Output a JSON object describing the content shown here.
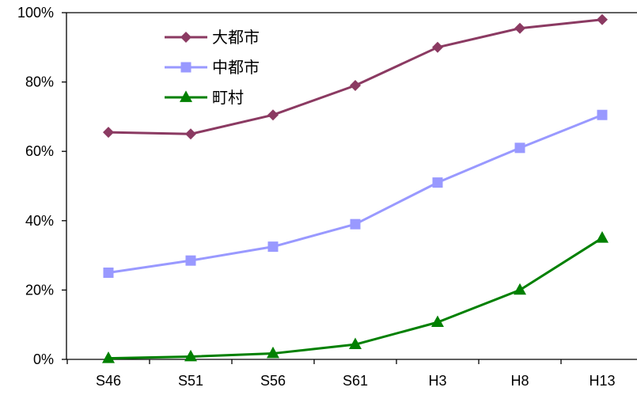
{
  "chart_data": {
    "type": "line",
    "title": "",
    "xlabel": "",
    "ylabel": "",
    "categories": [
      "S46",
      "S51",
      "S56",
      "S61",
      "H3",
      "H8",
      "H13"
    ],
    "y_ticks": [
      "0%",
      "20%",
      "40%",
      "60%",
      "80%",
      "100%"
    ],
    "ylim": [
      0,
      100
    ],
    "grid": false,
    "legend_position": "top-left",
    "series": [
      {
        "name": "大都市",
        "marker": "diamond",
        "color": "#8B3A62",
        "values": [
          65.5,
          65,
          70.5,
          79,
          90,
          95.5,
          98
        ]
      },
      {
        "name": "中都市",
        "marker": "square",
        "color": "#9999FF",
        "values": [
          25,
          28.5,
          32.5,
          39,
          51,
          61,
          70.5
        ]
      },
      {
        "name": "町村",
        "marker": "triangle",
        "color": "#008000",
        "values": [
          0.3,
          0.8,
          1.7,
          4.3,
          10.7,
          20,
          35
        ]
      }
    ]
  }
}
